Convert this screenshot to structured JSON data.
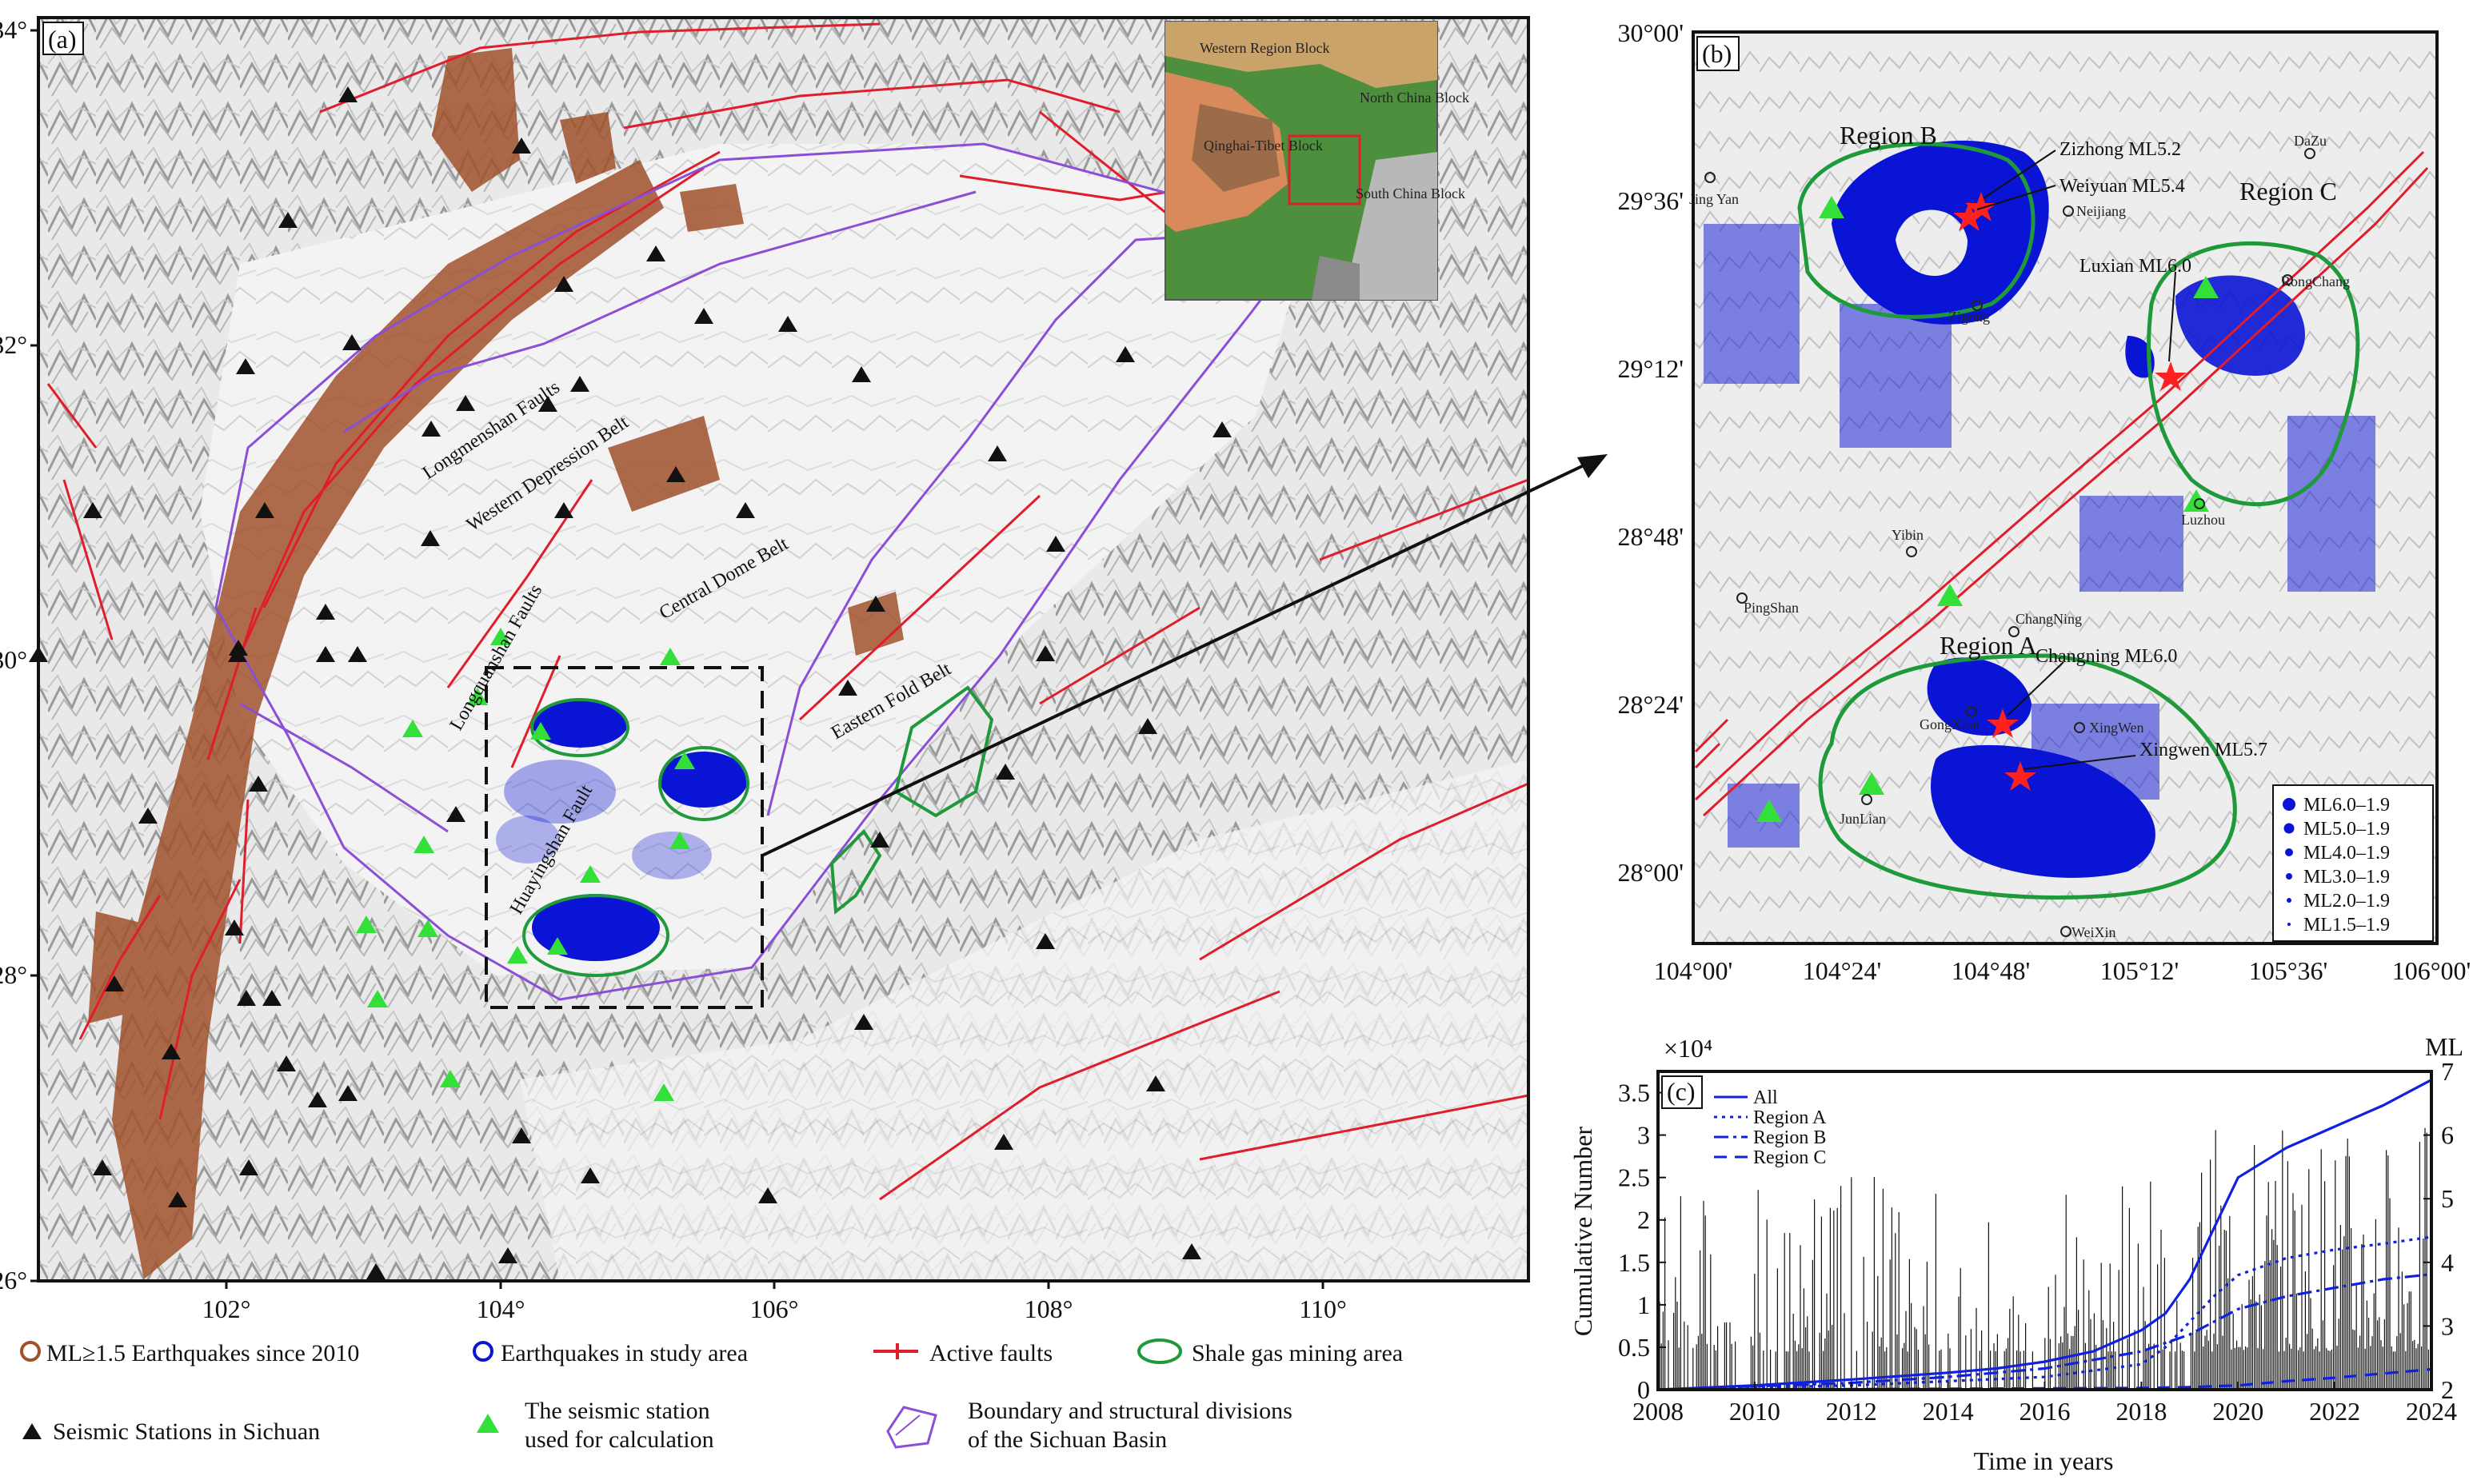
{
  "panel_a": {
    "label": "(a)",
    "x_ticks": [
      "102°",
      "104°",
      "106°",
      "108°",
      "110°"
    ],
    "y_ticks": [
      "34°",
      "32°",
      "30°",
      "28°",
      "26°"
    ],
    "faults": [
      "Longmenshan Faults",
      "Western Depression Belt",
      "Longquanshan Faults",
      "Central Dome Belt",
      "Huayingshan Fault",
      "Eastern Fold Belt"
    ],
    "inset": {
      "blocks": [
        "Western Region Block",
        "Qinghai-Tibet Block",
        "North China Block",
        "South China Block"
      ]
    }
  },
  "panel_b": {
    "label": "(b)",
    "x_ticks": [
      "104°00'",
      "104°24'",
      "104°48'",
      "105°12'",
      "105°36'",
      "106°00'"
    ],
    "y_ticks": [
      "30°00'",
      "29°36'",
      "29°12'",
      "28°48'",
      "28°24'",
      "28°00'"
    ],
    "regions": [
      "Region A",
      "Region B",
      "Region C"
    ],
    "events": [
      "Zizhong ML5.2",
      "Weiyuan ML5.4",
      "Luxian ML6.0",
      "Changning ML6.0",
      "Xingwen ML5.7"
    ],
    "towns": [
      "Jing Yan",
      "DaZu",
      "Neijiang",
      "Zigong",
      "RongChang",
      "Luzhou",
      "Yibin",
      "PingShan",
      "ChangNing",
      "GongXian",
      "XingWen",
      "JunLian",
      "WeiXin"
    ],
    "legend": [
      "ML6.0–1.9",
      "ML5.0–1.9",
      "ML4.0–1.9",
      "ML3.0–1.9",
      "ML2.0–1.9",
      "ML1.5–1.9"
    ]
  },
  "chart_data": {
    "type": "line",
    "title": "",
    "label": "(c)",
    "xlabel": "Time in years",
    "ylabel": "Cumulative Number",
    "ylabel_multiplier": "×10⁴",
    "y2label": "ML",
    "xlim": [
      2008,
      2024
    ],
    "ylim": [
      0,
      3.75
    ],
    "y2lim": [
      2,
      7
    ],
    "x_ticks": [
      2008,
      2010,
      2012,
      2014,
      2016,
      2018,
      2020,
      2022,
      2024
    ],
    "y_ticks": [
      0,
      0.5,
      1,
      1.5,
      2,
      2.5,
      3,
      3.5
    ],
    "y2_ticks": [
      2,
      3,
      4,
      5,
      6,
      7
    ],
    "legend_position": "top-left",
    "series": [
      {
        "name": "All",
        "style": "solid",
        "x": [
          2008,
          2010,
          2012,
          2014,
          2015,
          2016,
          2017,
          2018,
          2018.5,
          2019,
          2019.5,
          2020,
          2021,
          2022,
          2023,
          2024
        ],
        "y": [
          0,
          0.05,
          0.12,
          0.2,
          0.25,
          0.33,
          0.45,
          0.7,
          0.9,
          1.3,
          1.9,
          2.5,
          2.85,
          3.1,
          3.35,
          3.65
        ]
      },
      {
        "name": "Region A",
        "style": "dotted",
        "x": [
          2008,
          2012,
          2014,
          2016,
          2018,
          2018.5,
          2019,
          2019.5,
          2020,
          2021,
          2022,
          2023,
          2024
        ],
        "y": [
          0,
          0.05,
          0.1,
          0.15,
          0.3,
          0.5,
          0.8,
          1.1,
          1.35,
          1.55,
          1.65,
          1.72,
          1.8
        ]
      },
      {
        "name": "Region B",
        "style": "dashdot",
        "x": [
          2008,
          2010,
          2012,
          2014,
          2016,
          2018,
          2019,
          2020,
          2021,
          2022,
          2023,
          2024
        ],
        "y": [
          0,
          0.04,
          0.08,
          0.15,
          0.25,
          0.45,
          0.65,
          0.95,
          1.1,
          1.2,
          1.3,
          1.36
        ]
      },
      {
        "name": "Region C",
        "style": "dashed",
        "x": [
          2008,
          2014,
          2018,
          2019,
          2020,
          2021,
          2022,
          2023,
          2024
        ],
        "y": [
          0,
          0.01,
          0.02,
          0.03,
          0.05,
          0.1,
          0.14,
          0.19,
          0.24
        ]
      }
    ]
  },
  "legend": {
    "items": [
      "ML≥1.5 Earthquakes since 2010",
      "Earthquakes in  study area",
      "Active faults",
      "Shale gas mining area",
      "Seismic Stations in Sichuan",
      "The seismic station used for calculation",
      "Boundary and structural divisions of the Sichuan Basin"
    ]
  },
  "colors": {
    "fault": "#e01e2b",
    "quake_brown": "#a0522d",
    "quake_blue": "#0a14d4",
    "shale": "#1f9a3a",
    "basin": "#8a4fd6",
    "station_black": "#111111",
    "station_green": "#33e03a",
    "star": "#ff2020"
  }
}
